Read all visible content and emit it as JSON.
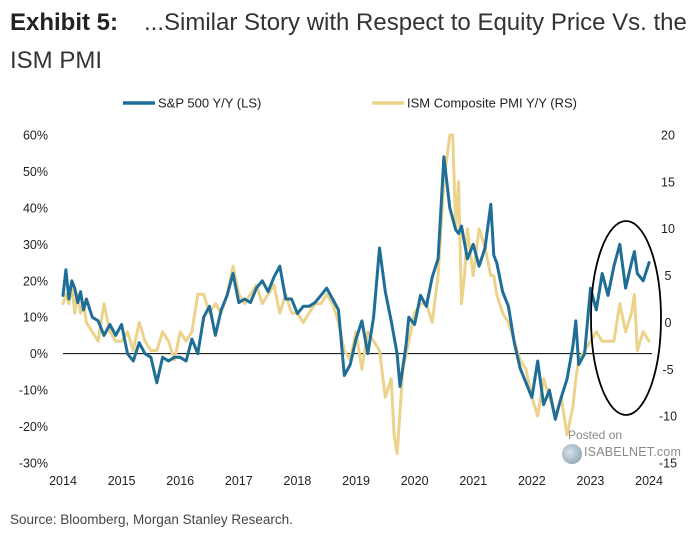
{
  "header": {
    "exhibit": "Exhibit 5:",
    "title": "...Similar Story with Respect to Equity Price Vs. the ISM PMI"
  },
  "footer": {
    "source": "Source: Bloomberg, Morgan Stanley Research."
  },
  "watermark": {
    "posted": "Posted on",
    "brand": "ISABELNET.com"
  },
  "colors": {
    "sp500": "#1f6e97",
    "ism": "#ecd38c",
    "annotation": "#000000",
    "zero_line": "#000000"
  },
  "chart_data": {
    "type": "line",
    "title": "...Similar Story with Respect to Equity Price Vs. the ISM PMI",
    "x_ticks": [
      "2014",
      "2015",
      "2016",
      "2017",
      "2018",
      "2019",
      "2020",
      "2021",
      "2022",
      "2023",
      "2024"
    ],
    "xlim": [
      2014.0,
      2024.05
    ],
    "y_left": {
      "ticks": [
        "60%",
        "50%",
        "40%",
        "30%",
        "20%",
        "10%",
        "0%",
        "-10%",
        "-20%",
        "-30%"
      ],
      "range": [
        -30,
        60
      ]
    },
    "y_right": {
      "ticks": [
        "20",
        "15",
        "10",
        "5",
        "0",
        "-5",
        "-10",
        "-15"
      ],
      "range": [
        -15,
        20
      ]
    },
    "legend": {
      "position": "top",
      "entries": [
        "S&P 500 Y/Y (LS)",
        "ISM Composite PMI Y/Y (RS)"
      ]
    },
    "annotation": "ellipse highlighting 2023-2024 divergence",
    "series": [
      {
        "name": "S&P 500 Y/Y (LS)",
        "axis": "left",
        "x": [
          2014.0,
          2014.05,
          2014.1,
          2014.15,
          2014.2,
          2014.25,
          2014.3,
          2014.35,
          2014.4,
          2014.5,
          2014.6,
          2014.7,
          2014.8,
          2014.9,
          2015.0,
          2015.1,
          2015.2,
          2015.3,
          2015.4,
          2015.5,
          2015.6,
          2015.7,
          2015.8,
          2015.9,
          2016.0,
          2016.1,
          2016.2,
          2016.3,
          2016.4,
          2016.5,
          2016.6,
          2016.7,
          2016.8,
          2016.9,
          2017.0,
          2017.1,
          2017.2,
          2017.3,
          2017.4,
          2017.5,
          2017.6,
          2017.7,
          2017.8,
          2017.9,
          2018.0,
          2018.1,
          2018.2,
          2018.3,
          2018.4,
          2018.5,
          2018.6,
          2018.7,
          2018.8,
          2018.9,
          2019.0,
          2019.1,
          2019.2,
          2019.3,
          2019.4,
          2019.5,
          2019.6,
          2019.7,
          2019.75,
          2019.85,
          2019.9,
          2020.0,
          2020.1,
          2020.2,
          2020.3,
          2020.4,
          2020.5,
          2020.6,
          2020.7,
          2020.75,
          2020.8,
          2020.9,
          2021.0,
          2021.1,
          2021.2,
          2021.3,
          2021.35,
          2021.4,
          2021.5,
          2021.6,
          2021.7,
          2021.8,
          2021.9,
          2022.0,
          2022.1,
          2022.2,
          2022.3,
          2022.4,
          2022.5,
          2022.6,
          2022.7,
          2022.75,
          2022.8,
          2022.9,
          2023.0,
          2023.1,
          2023.2,
          2023.3,
          2023.4,
          2023.5,
          2023.6,
          2023.7,
          2023.75,
          2023.8,
          2023.9,
          2024.0
        ],
        "values": [
          16,
          23,
          15,
          20,
          18,
          14,
          17,
          12,
          15,
          10,
          9,
          5,
          8,
          5,
          8,
          0,
          -2,
          3,
          0,
          -1,
          -8,
          -1,
          -2,
          -1,
          -1,
          -2,
          4,
          0,
          10,
          13,
          5,
          12,
          16,
          22,
          14,
          15,
          14,
          18,
          20,
          17,
          21,
          24,
          15,
          15,
          11,
          13,
          13,
          14,
          16,
          18,
          15,
          12,
          -6,
          -3,
          4,
          9,
          0,
          10,
          29,
          17,
          9,
          0,
          -9,
          2,
          10,
          8,
          16,
          13,
          21,
          26,
          54,
          40,
          34,
          33,
          35,
          26,
          30,
          24,
          29,
          41,
          27,
          25,
          17,
          13,
          3,
          -4,
          -8,
          -12,
          -2,
          -14,
          -10,
          -18,
          -12,
          -7,
          2,
          9,
          -3,
          0,
          18,
          12,
          22,
          16,
          24,
          30,
          18,
          25,
          28,
          22,
          20,
          25
        ],
        "labels": {
          "peak_2020": "~54%",
          "low_2022": "~-18%",
          "end_2024": "~25%"
        }
      },
      {
        "name": "ISM Composite PMI Y/Y (RS)",
        "axis": "right",
        "x": [
          2014.0,
          2014.05,
          2014.1,
          2014.15,
          2014.2,
          2014.25,
          2014.3,
          2014.35,
          2014.4,
          2014.5,
          2014.6,
          2014.7,
          2014.8,
          2014.9,
          2015.0,
          2015.1,
          2015.2,
          2015.3,
          2015.4,
          2015.5,
          2015.6,
          2015.7,
          2015.8,
          2015.9,
          2016.0,
          2016.1,
          2016.2,
          2016.3,
          2016.4,
          2016.5,
          2016.6,
          2016.7,
          2016.8,
          2016.9,
          2017.0,
          2017.1,
          2017.2,
          2017.3,
          2017.4,
          2017.5,
          2017.6,
          2017.7,
          2017.8,
          2017.9,
          2018.0,
          2018.1,
          2018.2,
          2018.3,
          2018.4,
          2018.5,
          2018.6,
          2018.7,
          2018.8,
          2018.9,
          2019.0,
          2019.1,
          2019.2,
          2019.3,
          2019.4,
          2019.5,
          2019.6,
          2019.65,
          2019.7,
          2019.8,
          2019.9,
          2020.0,
          2020.1,
          2020.2,
          2020.3,
          2020.4,
          2020.5,
          2020.6,
          2020.65,
          2020.7,
          2020.75,
          2020.8,
          2020.85,
          2020.9,
          2021.0,
          2021.1,
          2021.2,
          2021.3,
          2021.35,
          2021.4,
          2021.5,
          2021.6,
          2021.7,
          2021.8,
          2021.9,
          2022.0,
          2022.1,
          2022.2,
          2022.3,
          2022.4,
          2022.5,
          2022.6,
          2022.7,
          2022.75,
          2022.8,
          2022.9,
          2023.0,
          2023.1,
          2023.2,
          2023.3,
          2023.4,
          2023.5,
          2023.6,
          2023.7,
          2023.75,
          2023.8,
          2023.9,
          2024.0
        ],
        "values": [
          2,
          3,
          2,
          4,
          1,
          3,
          1,
          2,
          0,
          -1,
          -2,
          2,
          -1,
          -2,
          -2,
          -1,
          -3,
          0,
          -2,
          -3,
          -3,
          -1,
          -2,
          -4,
          -1,
          -2,
          -1,
          3,
          3,
          1,
          2,
          1,
          3,
          6,
          3,
          2,
          3,
          4,
          2,
          3,
          4,
          1,
          3,
          1,
          1,
          0,
          1,
          2,
          2,
          3,
          2,
          0,
          -3,
          -4,
          -1,
          -5,
          -1,
          -2,
          -3,
          -8,
          -6,
          -12,
          -14,
          -5,
          -2,
          1,
          2,
          2,
          0,
          5,
          15,
          20,
          20,
          10,
          15,
          2,
          5,
          10,
          5,
          10,
          8,
          5,
          5,
          3,
          1,
          0,
          -2,
          -4,
          -5,
          -8,
          -10,
          -6,
          -8,
          -10,
          -8,
          -12,
          -9,
          -6,
          -4,
          -3,
          -2,
          -1,
          -2,
          -2,
          -2,
          2,
          -1,
          1,
          3,
          -3,
          -1,
          -2
        ]
      }
    ]
  }
}
